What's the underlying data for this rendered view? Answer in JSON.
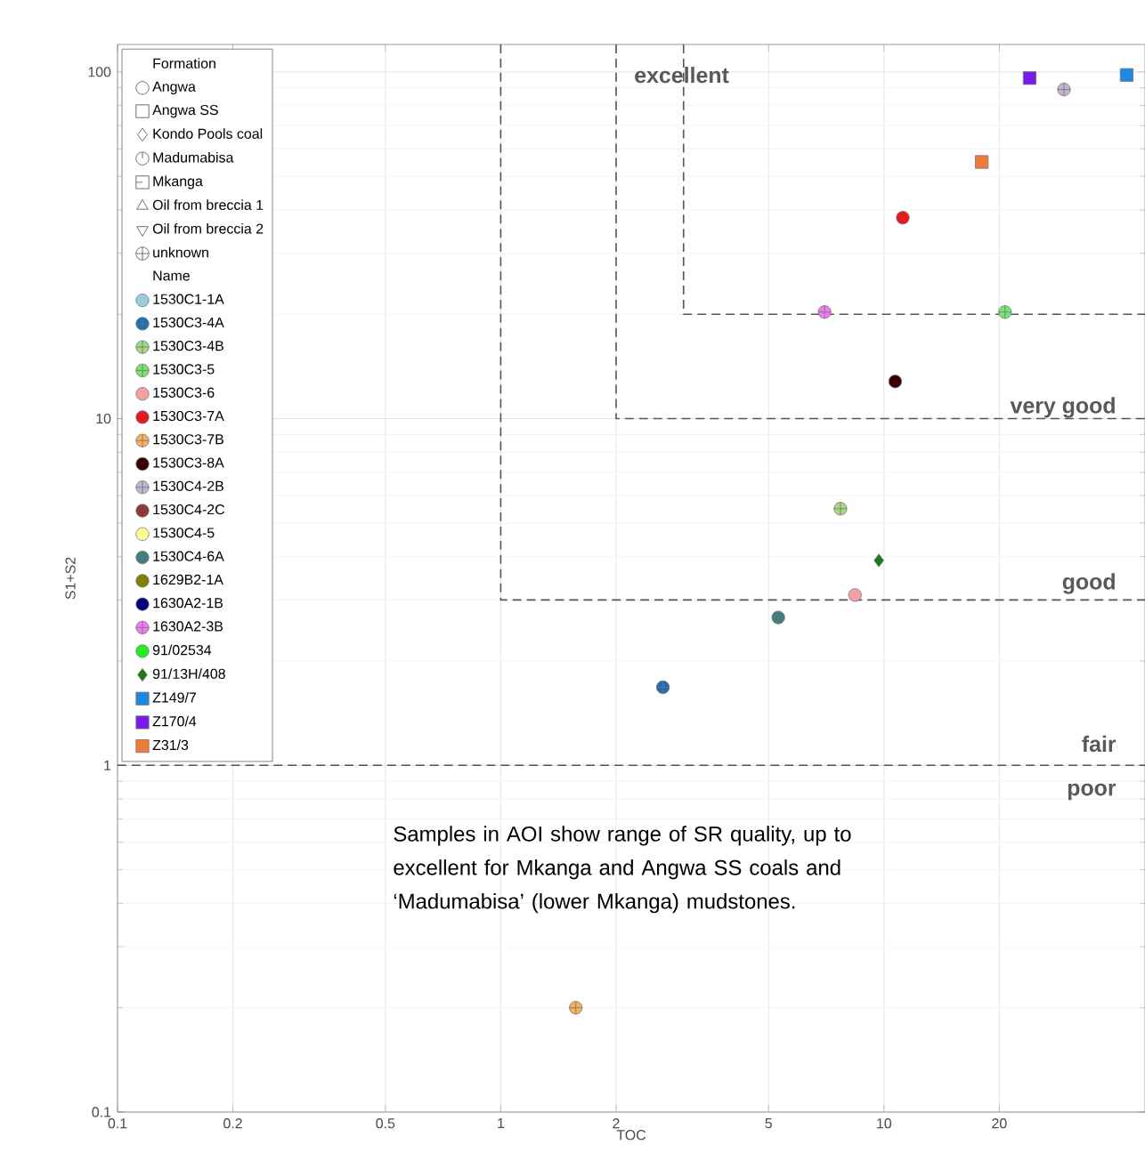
{
  "chart_data": {
    "type": "scatter",
    "xlabel": "TOC",
    "ylabel": "S1+S2",
    "log": "xy",
    "grid": true,
    "legend": "top left",
    "legend_title": [
      "Formation",
      "Name"
    ],
    "xlim": [
      0.1,
      48
    ],
    "ylim": [
      0.1,
      120
    ],
    "xticks": [
      0.1,
      0.2,
      0.5,
      1,
      2,
      5,
      10,
      20
    ],
    "yticks": [
      0.1,
      1,
      10,
      100
    ],
    "ref_lines": [
      {
        "axis": "y",
        "value": 1,
        "color": "#555555",
        "line_style": "dashed"
      }
    ],
    "annotations": [
      "excellent",
      "very good",
      "good",
      "fair",
      "poor",
      "Samples in AOI show range of SR quality, up to excellent for Mkanga and Angwa SS coals and ‘Madumabisa’ (lower Mkanga) mudstones."
    ],
    "series": [
      {
        "type": "line",
        "line_style": "dashed",
        "marker": "none",
        "color": "#555555",
        "x": [
          1,
          1,
          48
        ],
        "values": [
          120,
          3,
          3
        ]
      },
      {
        "type": "line",
        "line_style": "dashed",
        "marker": "none",
        "color": "#555555",
        "x": [
          2,
          2,
          48
        ],
        "values": [
          120,
          10,
          10
        ]
      },
      {
        "type": "line",
        "line_style": "dashed",
        "marker": "none",
        "color": "#555555",
        "x": [
          3,
          3,
          48
        ],
        "values": [
          120,
          20,
          20
        ]
      },
      {
        "name": "Angwa",
        "marker": "circle"
      },
      {
        "name": "Angwa SS",
        "marker": "square"
      },
      {
        "name": "Kondo Pools coal",
        "marker": "diamond"
      },
      {
        "name": "Madumabisa",
        "marker": "circle-tick"
      },
      {
        "name": "Mkanga",
        "marker": "square-tick"
      },
      {
        "name": "Oil from breccia 1",
        "marker": "triangle"
      },
      {
        "name": "Oil from breccia 2",
        "marker": "triangle-down"
      },
      {
        "name": "unknown",
        "marker": "cross"
      },
      {
        "name": "1530C1-1A",
        "color": "#9ecae1",
        "marker": "circle"
      },
      {
        "name": "1530C3-4A",
        "color": "#1f6fb2",
        "marker": "cross",
        "x": [
          2.65
        ],
        "values": [
          1.68
        ]
      },
      {
        "name": "1530C3-4B",
        "color": "#a6d785",
        "marker": "cross",
        "x": [
          7.7
        ],
        "values": [
          5.5
        ]
      },
      {
        "name": "1530C3-5",
        "color": "#77e477",
        "marker": "cross",
        "x": [
          20.7
        ],
        "values": [
          20.3
        ]
      },
      {
        "name": "1530C3-6",
        "color": "#f4a0a0",
        "marker": "circle",
        "x": [
          8.4
        ],
        "values": [
          3.1
        ]
      },
      {
        "name": "1530C3-7A",
        "color": "#e41a1c",
        "marker": "circle",
        "x": [
          11.2
        ],
        "values": [
          38
        ]
      },
      {
        "name": "1530C3-7B",
        "color": "#f5b060",
        "marker": "cross",
        "x": [
          1.57
        ],
        "values": [
          0.2
        ]
      },
      {
        "name": "1530C3-8A",
        "color": "#3a0000",
        "marker": "circle",
        "x": [
          10.7
        ],
        "values": [
          12.8
        ]
      },
      {
        "name": "1530C4-2B",
        "color": "#c3b3d6",
        "marker": "cross",
        "x": [
          29.5
        ],
        "values": [
          89
        ]
      },
      {
        "name": "1530C4-2C",
        "color": "#8b3a3a",
        "marker": "circle"
      },
      {
        "name": "1530C4-5",
        "color": "#ffff99",
        "marker": "circle"
      },
      {
        "name": "1530C4-6A",
        "color": "#3d7f80",
        "marker": "cross",
        "x": [
          5.3
        ],
        "values": [
          2.67
        ]
      },
      {
        "name": "1629B2-1A",
        "color": "#808000",
        "marker": "circle"
      },
      {
        "name": "1630A2-1B",
        "color": "#000080",
        "marker": "circle"
      },
      {
        "name": "1630A2-3B",
        "color": "#f07cf0",
        "marker": "cross",
        "x": [
          7.0
        ],
        "values": [
          20.3
        ]
      },
      {
        "name": "91/02534",
        "color": "#22ee22",
        "marker": "circle"
      },
      {
        "name": "91/13H/408",
        "color": "#1a7a1a",
        "marker": "diamond",
        "x": [
          9.7
        ],
        "values": [
          3.9
        ]
      },
      {
        "name": "Z149/7",
        "color": "#1e88e5",
        "marker": "square",
        "x": [
          43
        ],
        "values": [
          98
        ]
      },
      {
        "name": "Z170/4",
        "color": "#7a1ae8",
        "marker": "square",
        "x": [
          24
        ],
        "values": [
          96
        ]
      },
      {
        "name": "Z31/3",
        "color": "#f07a3a",
        "marker": "square",
        "x": [
          18
        ],
        "values": [
          55
        ]
      }
    ]
  }
}
